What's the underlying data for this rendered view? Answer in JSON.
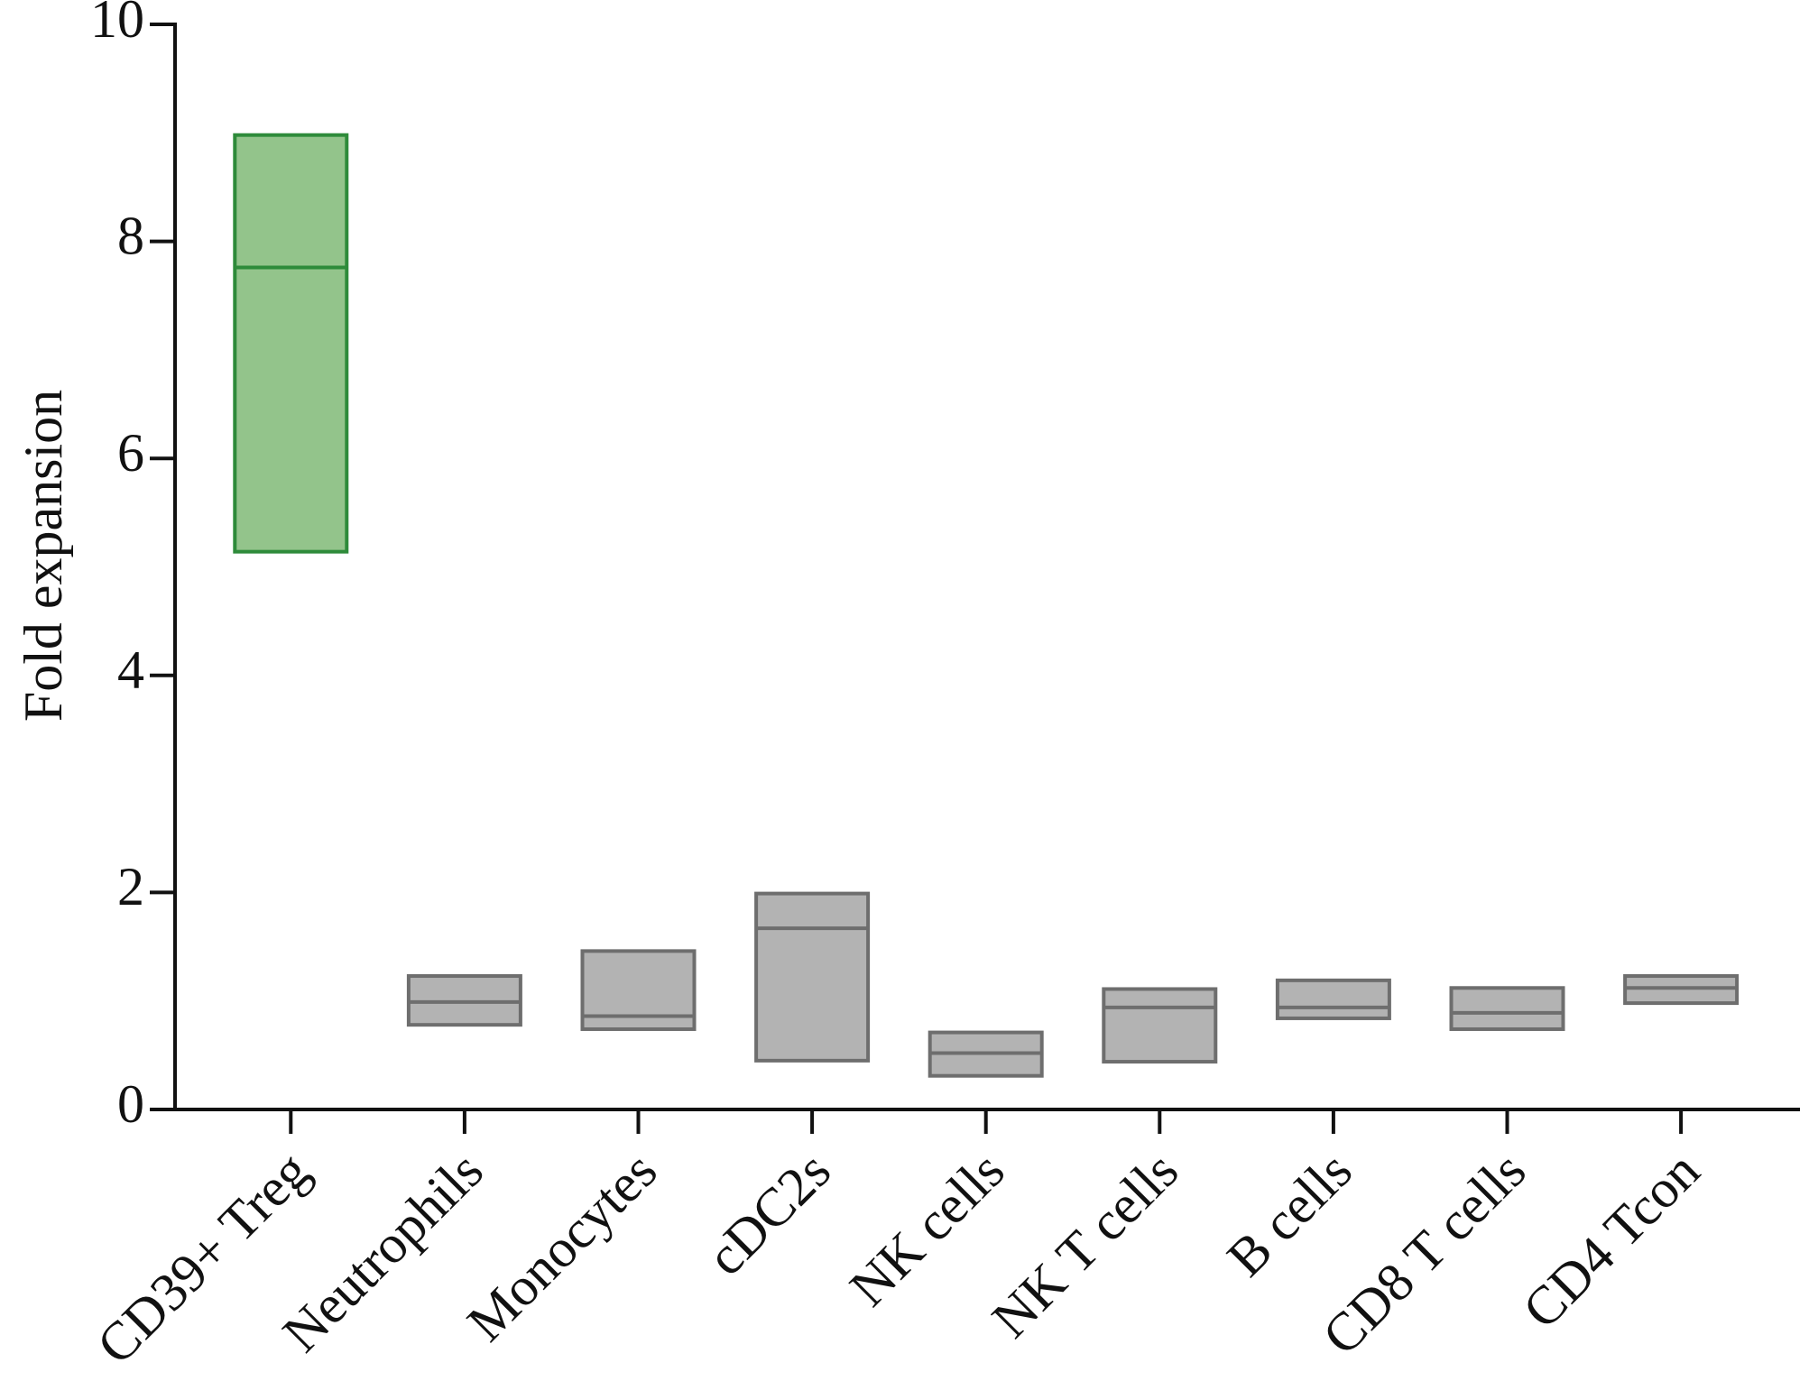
{
  "chart_data": {
    "type": "floating-bar",
    "y_label": "Fold expansion",
    "categories": [
      "CD39+ Treg",
      "Neutrophils",
      "Monocytes",
      "cDC2s",
      "NK cells",
      "NK T cells",
      "B cells",
      "CD8 T cells",
      "CD4 Tcon"
    ],
    "low": [
      5.14,
      0.78,
      0.74,
      0.45,
      0.31,
      0.44,
      0.84,
      0.74,
      0.98
    ],
    "median": [
      7.76,
      0.99,
      0.86,
      1.67,
      0.52,
      0.94,
      0.94,
      0.89,
      1.12
    ],
    "high": [
      8.98,
      1.23,
      1.46,
      1.99,
      0.71,
      1.11,
      1.19,
      1.12,
      1.23
    ],
    "colors": [
      "#93c48b",
      "#b3b3b3",
      "#b3b3b3",
      "#b3b3b3",
      "#b3b3b3",
      "#b3b3b3",
      "#b3b3b3",
      "#b3b3b3",
      "#b3b3b3"
    ],
    "edge_colors": [
      "#2e8b3a",
      "#6e6e6e",
      "#6e6e6e",
      "#6e6e6e",
      "#6e6e6e",
      "#6e6e6e",
      "#6e6e6e",
      "#6e6e6e",
      "#6e6e6e"
    ],
    "ylim": [
      0,
      10
    ],
    "yticks": [
      0,
      2,
      4,
      6,
      8,
      10
    ]
  }
}
